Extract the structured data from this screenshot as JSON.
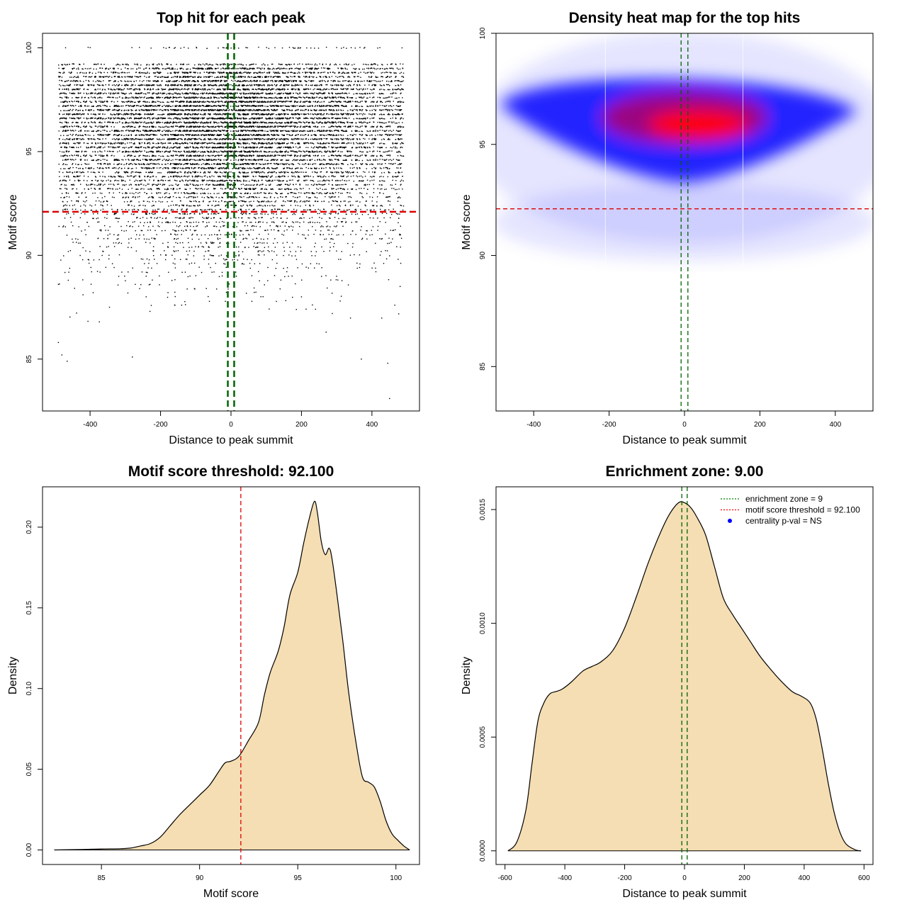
{
  "chart_data": [
    {
      "type": "scatter",
      "title": "Top hit for each peak",
      "xlabel": "Distance to peak summit",
      "ylabel": "Motif score",
      "xlim": [
        -535,
        535
      ],
      "ylim": [
        82.5,
        100.7
      ],
      "xticks": [
        -400,
        -200,
        0,
        200,
        400
      ],
      "yticks": [
        85,
        90,
        95,
        100
      ],
      "points_x_range": [
        -490,
        490
      ],
      "score_levels": [
        100,
        99.2,
        99,
        98.8,
        98.6,
        98.4,
        98.2,
        98,
        97.8,
        97.6,
        97.4,
        97.2,
        97,
        96.8,
        96.6,
        96.4,
        96.2,
        96,
        95.8,
        95.6,
        95.4,
        95.2,
        95,
        94.8,
        94.6,
        94.4,
        94.2,
        94,
        93.8,
        93.6,
        93.4,
        93.2,
        93,
        92.8,
        92.6,
        92.4,
        92.2,
        92,
        91.8,
        91.6,
        91.4,
        91.2,
        91,
        90.8,
        90.6,
        90.4,
        90.2,
        90,
        89.8,
        89.6,
        89.4,
        89.2,
        89,
        88.8,
        88.6,
        88.4,
        88.2,
        88,
        87.8,
        87.6,
        87.4,
        87.2,
        87,
        86.8
      ],
      "level_counts": [
        60,
        200,
        320,
        320,
        340,
        360,
        380,
        400,
        420,
        440,
        440,
        460,
        480,
        480,
        480,
        460,
        440,
        460,
        420,
        420,
        400,
        400,
        380,
        360,
        340,
        320,
        300,
        280,
        260,
        240,
        220,
        200,
        180,
        160,
        150,
        140,
        120,
        110,
        100,
        90,
        80,
        70,
        65,
        60,
        55,
        50,
        45,
        40,
        35,
        30,
        25,
        22,
        18,
        15,
        12,
        10,
        9,
        8,
        6,
        5,
        4,
        4,
        3,
        2
      ],
      "outliers": [
        [
          -490,
          85.8
        ],
        [
          -480,
          85.2
        ],
        [
          -465,
          84.9
        ],
        [
          -280,
          85.1
        ],
        [
          370,
          85.0
        ],
        [
          445,
          84.8
        ],
        [
          450,
          83.1
        ],
        [
          -345,
          87.5
        ],
        [
          -230,
          87.3
        ],
        [
          -140,
          87.6
        ],
        [
          -70,
          88.4
        ],
        [
          200,
          88.0
        ],
        [
          270,
          86.3
        ],
        [
          310,
          87.8
        ],
        [
          465,
          87.6
        ],
        [
          480,
          88.5
        ],
        [
          -490,
          88.6
        ],
        [
          -420,
          88.1
        ]
      ],
      "h_lines": [
        {
          "y": 92.1,
          "color": "#dd0000",
          "style": "dashed"
        }
      ],
      "v_lines": [
        {
          "x": -9,
          "color": "#006400",
          "style": "dashed"
        },
        {
          "x": 9,
          "color": "#006400",
          "style": "dashed"
        }
      ]
    },
    {
      "type": "heatmap",
      "title": "Density heat map for the top hits",
      "xlabel": "Distance to peak summit",
      "ylabel": "Motif score",
      "xlim": [
        -500,
        500
      ],
      "ylim": [
        83,
        100
      ],
      "xticks": [
        -400,
        -200,
        0,
        200,
        400
      ],
      "yticks": [
        85,
        90,
        95,
        100
      ],
      "colors": [
        "#ffffff",
        "#0000ff",
        "#ff0000"
      ],
      "h_lines": [
        {
          "y": 92.1,
          "color": "#dd0000",
          "style": "dashed"
        }
      ],
      "v_lines": [
        {
          "x": -9,
          "color": "#006400",
          "style": "dashed"
        },
        {
          "x": 9,
          "color": "#006400",
          "style": "dashed"
        }
      ]
    },
    {
      "type": "area",
      "title": "Motif score threshold: 92.100",
      "xlabel": "Motif score",
      "ylabel": "Density",
      "xlim": [
        82,
        101.2
      ],
      "ylim": [
        -0.009,
        0.225
      ],
      "xticks": [
        85,
        90,
        95,
        100
      ],
      "yticks": [
        0.0,
        0.05,
        0.1,
        0.15,
        0.2
      ],
      "ytick_labels": [
        "0.00",
        "0.05",
        "0.10",
        "0.15",
        "0.20"
      ],
      "x": [
        82.6,
        84,
        85,
        86,
        86.5,
        87,
        87.5,
        88,
        88.5,
        89,
        89.5,
        90,
        90.5,
        91,
        91.3,
        91.6,
        92,
        92.5,
        93,
        93.3,
        93.6,
        94,
        94.3,
        94.6,
        95,
        95.3,
        95.6,
        95.85,
        96,
        96.2,
        96.4,
        96.6,
        96.75,
        97,
        97.3,
        97.6,
        98,
        98.3,
        98.6,
        98.9,
        99.2,
        99.5,
        99.8,
        100.1,
        100.4,
        100.7
      ],
      "y": [
        0.0,
        0.0003,
        0.0006,
        0.0008,
        0.0012,
        0.0025,
        0.004,
        0.008,
        0.015,
        0.022,
        0.028,
        0.034,
        0.04,
        0.049,
        0.054,
        0.055,
        0.058,
        0.068,
        0.079,
        0.096,
        0.11,
        0.123,
        0.138,
        0.158,
        0.172,
        0.19,
        0.206,
        0.216,
        0.209,
        0.191,
        0.183,
        0.187,
        0.18,
        0.158,
        0.129,
        0.097,
        0.064,
        0.045,
        0.042,
        0.039,
        0.03,
        0.018,
        0.01,
        0.006,
        0.0025,
        0.0
      ],
      "fill": "#f5deb3",
      "v_lines": [
        {
          "x": 92.1,
          "color": "#dd0000",
          "style": "dashed"
        }
      ]
    },
    {
      "type": "area",
      "title": "Enrichment zone: 9.00",
      "xlabel": "Distance to peak summit",
      "ylabel": "Density",
      "xlim": [
        -630,
        630
      ],
      "ylim": [
        -6e-05,
        0.0016
      ],
      "xticks": [
        -600,
        -400,
        -200,
        0,
        200,
        400,
        600
      ],
      "yticks": [
        0.0,
        0.0005,
        0.001,
        0.0015
      ],
      "ytick_labels": [
        "0.0000",
        "0.0005",
        "0.0010",
        "0.0015"
      ],
      "x": [
        -590,
        -560,
        -530,
        -510,
        -490,
        -470,
        -450,
        -430,
        -410,
        -380,
        -340,
        -310,
        -280,
        -240,
        -200,
        -160,
        -120,
        -80,
        -50,
        -20,
        0,
        20,
        40,
        70,
        100,
        130,
        160,
        190,
        220,
        250,
        280,
        320,
        360,
        390,
        420,
        440,
        460,
        480,
        500,
        520,
        540,
        570,
        590
      ],
      "y": [
        0.0,
        4e-05,
        0.00018,
        0.00038,
        0.00057,
        0.00065,
        0.00069,
        0.0007,
        0.00071,
        0.00074,
        0.00079,
        0.00081,
        0.00083,
        0.00088,
        0.00098,
        0.00112,
        0.00127,
        0.0014,
        0.00148,
        0.00153,
        0.00153,
        0.00151,
        0.00147,
        0.00139,
        0.00125,
        0.00111,
        0.00104,
        0.00098,
        0.00092,
        0.00086,
        0.00081,
        0.00075,
        0.0007,
        0.00068,
        0.00065,
        0.00058,
        0.00045,
        0.0003,
        0.00017,
        8e-05,
        3e-05,
        5e-06,
        0.0
      ],
      "fill": "#f5deb3",
      "v_lines": [
        {
          "x": -9,
          "color": "#006400",
          "style": "dashed"
        },
        {
          "x": 9,
          "color": "#006400",
          "style": "dashed"
        }
      ],
      "legend": {
        "position": "top-right",
        "entries": [
          {
            "label": "enrichment zone = 9",
            "color": "#008000",
            "kind": "line"
          },
          {
            "label": "motif score threshold = 92.100",
            "color": "#ff0000",
            "kind": "line"
          },
          {
            "label": "centrality p-val = NS",
            "color": "#0000ff",
            "kind": "point"
          }
        ]
      }
    }
  ]
}
